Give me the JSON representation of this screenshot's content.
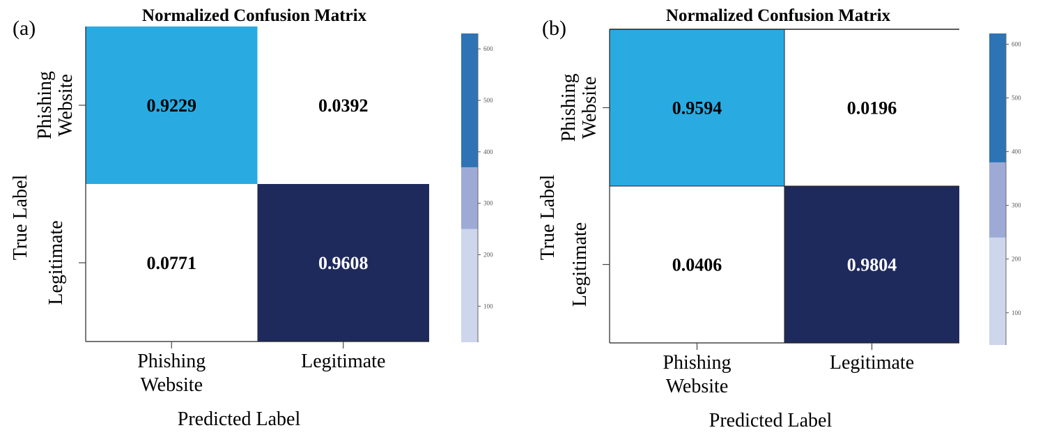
{
  "chart_data": [
    {
      "panel_label": "(a)",
      "type": "heatmap",
      "title": "Normalized Confusion Matrix",
      "xlabel": "Predicted Label",
      "ylabel": "True Label",
      "x_categories": [
        [
          "Phishing",
          "Website"
        ],
        [
          "Legitimate"
        ]
      ],
      "y_categories": [
        [
          "Phishing",
          "Website"
        ],
        [
          "Legitimate"
        ]
      ],
      "matrix": [
        [
          0.9229,
          0.0392
        ],
        [
          0.0771,
          0.9608
        ]
      ],
      "cell_labels": [
        [
          "0.9229",
          "0.0392"
        ],
        [
          "0.0771",
          "0.9608"
        ]
      ],
      "cell_colors": [
        [
          "#29abe2",
          "#ffffff"
        ],
        [
          "#ffffff",
          "#1f2a5c"
        ]
      ],
      "cell_text_colors": [
        [
          "#000000",
          "#000000"
        ],
        [
          "#000000",
          "#ffffff"
        ]
      ],
      "colorbar": {
        "ticks": [
          "600",
          "500",
          "400",
          "300",
          "200",
          "100"
        ],
        "tick_values": [
          600,
          500,
          400,
          300,
          200,
          100
        ],
        "range": [
          30,
          630
        ],
        "bands": [
          {
            "from": 30,
            "to": 250,
            "color": "#cdd6ea"
          },
          {
            "from": 250,
            "to": 370,
            "color": "#9eaad6"
          },
          {
            "from": 370,
            "to": 630,
            "color": "#2e74b5"
          }
        ]
      }
    },
    {
      "panel_label": "(b)",
      "type": "heatmap",
      "title": "Normalized Confusion Matrix",
      "xlabel": "Predicted Label",
      "ylabel": "True Label",
      "x_categories": [
        [
          "Phishing",
          "Website"
        ],
        [
          "Legitimate"
        ]
      ],
      "y_categories": [
        [
          "Phishing",
          "Website"
        ],
        [
          "Legitimate"
        ]
      ],
      "matrix": [
        [
          0.9594,
          0.0196
        ],
        [
          0.0406,
          0.9804
        ]
      ],
      "cell_labels": [
        [
          "0.9594",
          "0.0196"
        ],
        [
          "0.0406",
          "0.9804"
        ]
      ],
      "cell_colors": [
        [
          "#29abe2",
          "#ffffff"
        ],
        [
          "#ffffff",
          "#1f2a5c"
        ]
      ],
      "cell_text_colors": [
        [
          "#000000",
          "#000000"
        ],
        [
          "#000000",
          "#ffffff"
        ]
      ],
      "colorbar": {
        "ticks": [
          "600",
          "500",
          "400",
          "300",
          "200",
          "100"
        ],
        "tick_values": [
          600,
          500,
          400,
          300,
          200,
          100
        ],
        "range": [
          40,
          620
        ],
        "bands": [
          {
            "from": 40,
            "to": 240,
            "color": "#cdd6ea"
          },
          {
            "from": 240,
            "to": 380,
            "color": "#9eaad6"
          },
          {
            "from": 380,
            "to": 620,
            "color": "#2e74b5"
          }
        ]
      }
    }
  ]
}
